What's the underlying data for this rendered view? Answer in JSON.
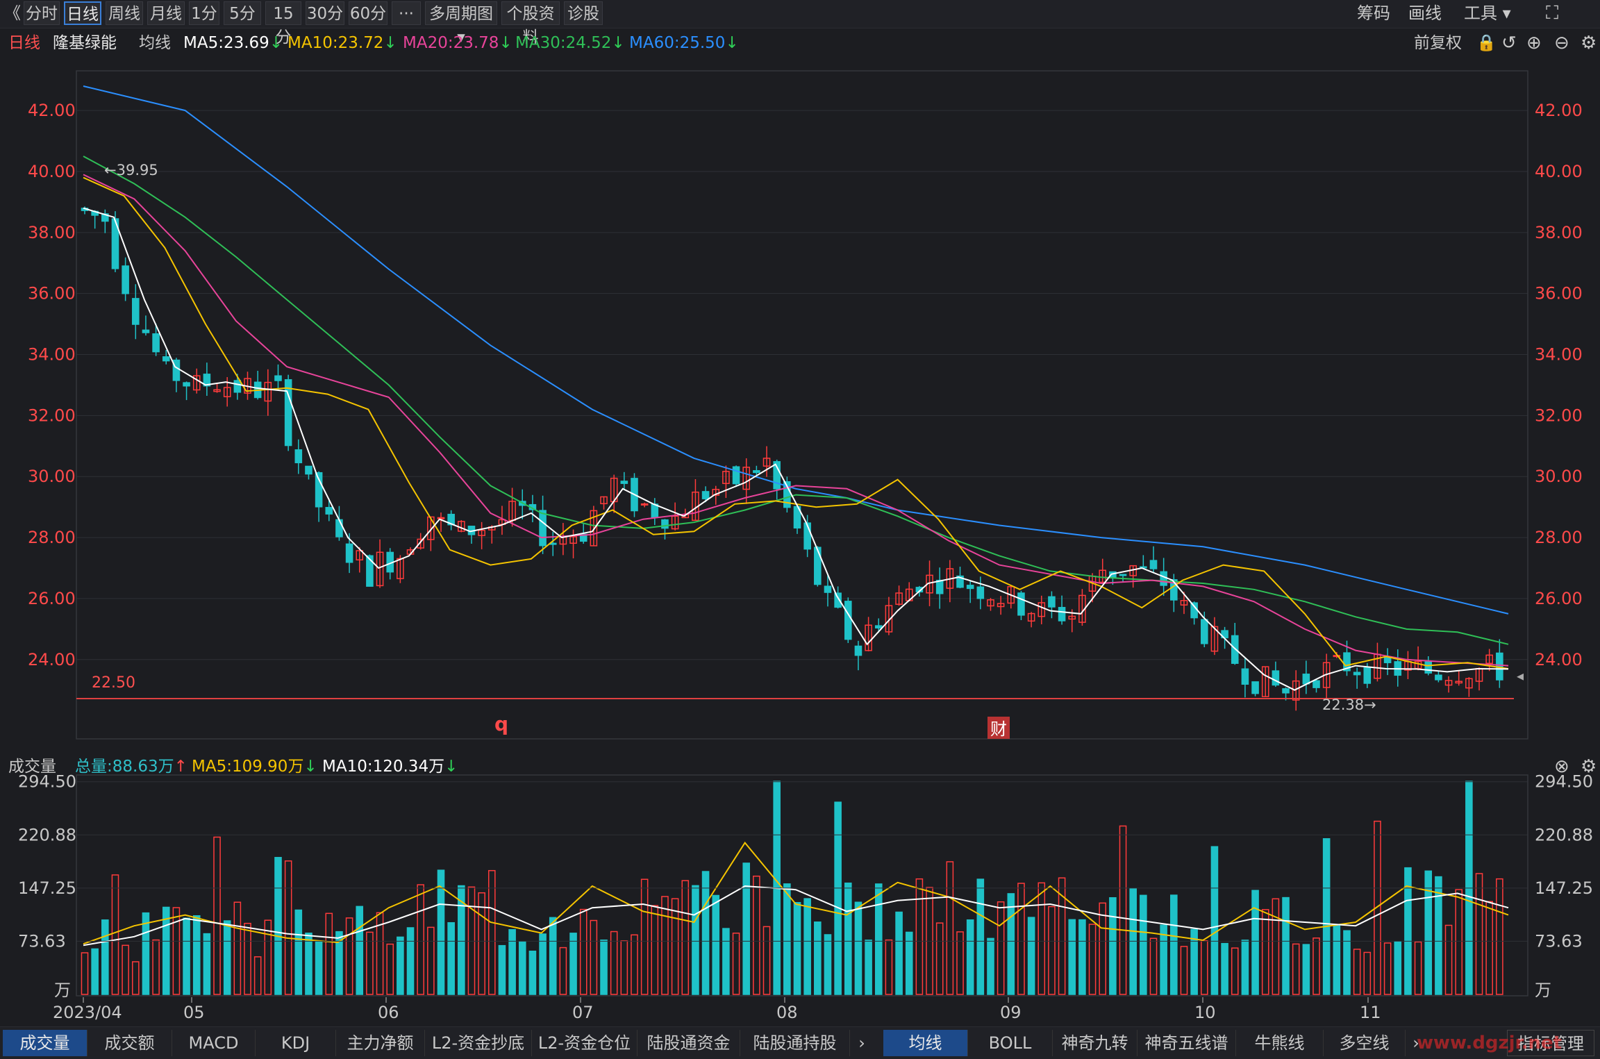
{
  "toolbar": {
    "back_icon": "《",
    "periods": [
      "分时",
      "日线",
      "周线",
      "月线",
      "1分",
      "5分",
      "15分",
      "30分",
      "60分"
    ],
    "active_period": "日线",
    "more_label": "···",
    "multi_period_label": "多周期图",
    "info_label": "个股资料",
    "diagnosis_label": "诊股",
    "right_items": [
      "筹码",
      "画线",
      "工具"
    ],
    "fullscreen_icon": "fullscreen-icon"
  },
  "legend": {
    "period": "日线",
    "stock_name": "隆基绿能",
    "ma_label": "均线",
    "ma5": "MA5:23.69",
    "ma10": "MA10:23.72",
    "ma20": "MA20:23.78",
    "ma30": "MA30:24.52",
    "ma60": "MA60:25.50",
    "adjust_label": "前复权",
    "colors": {
      "ma5": "#ffffff",
      "ma10": "#f5c400",
      "ma20": "#e8449a",
      "ma30": "#2fbf57",
      "ma60": "#2b8fff"
    }
  },
  "chart_data": {
    "type": "candlestick",
    "price_ticks": [
      "42.00",
      "40.00",
      "38.00",
      "36.00",
      "34.00",
      "32.00",
      "30.00",
      "28.00",
      "26.00",
      "24.00"
    ],
    "ylim": [
      21.4,
      43.3
    ],
    "max_label": "←39.95",
    "max_value": 39.95,
    "min_label": "22.38→",
    "min_value": 22.38,
    "support_label": "22.50",
    "support_value": 22.5,
    "markers": [
      {
        "label": "q",
        "color": "#ff4a4a"
      },
      {
        "label": "财",
        "color": "#ffffff"
      }
    ],
    "x_ticks": [
      "2023/04",
      "05",
      "06",
      "07",
      "08",
      "09",
      "10",
      "11"
    ],
    "ma_series": [
      {
        "name": "MA60",
        "color": "#2b8fff",
        "x": [
          0,
          10,
          20,
          30,
          40,
          50,
          60,
          70,
          75,
          80,
          90,
          100,
          110,
          120,
          130,
          140
        ],
        "y": [
          42.8,
          42.0,
          39.5,
          36.8,
          34.3,
          32.2,
          30.6,
          29.6,
          29.3,
          28.9,
          28.4,
          28.0,
          27.7,
          27.1,
          26.3,
          25.5
        ]
      },
      {
        "name": "MA30",
        "color": "#2fbf57",
        "x": [
          0,
          5,
          10,
          15,
          20,
          25,
          30,
          35,
          40,
          45,
          50,
          55,
          60,
          65,
          70,
          75,
          80,
          85,
          90,
          95,
          100,
          105,
          110,
          115,
          120,
          125,
          130,
          135,
          140
        ],
        "y": [
          40.5,
          39.6,
          38.5,
          37.2,
          35.8,
          34.4,
          33.0,
          31.3,
          29.7,
          28.8,
          28.4,
          28.3,
          28.5,
          28.9,
          29.4,
          29.3,
          28.7,
          28.0,
          27.4,
          26.9,
          26.7,
          26.6,
          26.5,
          26.3,
          25.9,
          25.4,
          25.0,
          24.9,
          24.5
        ]
      },
      {
        "name": "MA20",
        "color": "#e8449a",
        "x": [
          0,
          5,
          10,
          15,
          20,
          25,
          30,
          35,
          40,
          45,
          50,
          55,
          60,
          65,
          70,
          75,
          80,
          85,
          90,
          95,
          100,
          105,
          110,
          115,
          120,
          125,
          130,
          135,
          140
        ],
        "y": [
          39.9,
          39.1,
          37.4,
          35.1,
          33.6,
          33.1,
          32.6,
          30.8,
          28.8,
          28.0,
          28.1,
          28.6,
          28.8,
          29.3,
          29.7,
          29.6,
          28.9,
          27.9,
          27.1,
          26.8,
          26.5,
          26.6,
          26.4,
          25.9,
          25.0,
          24.3,
          24.0,
          23.9,
          23.8
        ]
      },
      {
        "name": "MA10",
        "color": "#f5c400",
        "x": [
          0,
          4,
          8,
          12,
          16,
          20,
          24,
          28,
          32,
          36,
          40,
          44,
          48,
          52,
          56,
          60,
          64,
          68,
          72,
          76,
          80,
          84,
          88,
          92,
          96,
          100,
          104,
          108,
          112,
          116,
          120,
          124,
          128,
          132,
          136,
          140
        ],
        "y": [
          39.8,
          39.2,
          37.5,
          35.0,
          32.8,
          32.9,
          32.7,
          32.2,
          29.8,
          27.6,
          27.1,
          27.3,
          28.4,
          28.9,
          28.1,
          28.2,
          29.1,
          29.2,
          29.0,
          29.1,
          29.9,
          28.6,
          26.9,
          26.3,
          26.9,
          26.4,
          25.7,
          26.6,
          27.1,
          26.9,
          25.5,
          23.8,
          24.1,
          23.8,
          23.9,
          23.7
        ]
      },
      {
        "name": "MA5",
        "color": "#ffffff",
        "x": [
          0,
          3,
          6,
          9,
          12,
          14,
          17,
          20,
          23,
          26,
          29,
          32,
          35,
          38,
          41,
          44,
          47,
          50,
          53,
          56,
          59,
          62,
          65,
          68,
          71,
          74,
          77,
          80,
          83,
          86,
          89,
          92,
          95,
          98,
          101,
          104,
          107,
          110,
          113,
          116,
          119,
          122,
          125,
          128,
          131,
          134,
          137,
          140
        ],
        "y": [
          38.8,
          38.5,
          35.8,
          33.6,
          33.0,
          33.1,
          32.9,
          32.8,
          30.0,
          28.0,
          27.0,
          27.4,
          28.6,
          28.2,
          28.4,
          28.8,
          28.0,
          28.2,
          29.6,
          29.1,
          28.7,
          29.4,
          29.8,
          30.4,
          28.5,
          26.1,
          24.5,
          25.6,
          26.5,
          26.7,
          26.4,
          26.0,
          25.6,
          25.5,
          26.8,
          27.0,
          26.6,
          25.4,
          24.4,
          23.5,
          23.0,
          23.5,
          23.8,
          23.7,
          23.69,
          23.6,
          23.7,
          23.69
        ]
      }
    ],
    "volume_ticks": [
      "294.50",
      "220.88",
      "147.25",
      "73.63",
      "万"
    ],
    "volume_ylim": [
      0,
      300
    ],
    "volume_ma_series": [
      {
        "name": "MA5",
        "color": "#f5c400",
        "x": [
          0,
          5,
          10,
          15,
          20,
          25,
          30,
          35,
          40,
          45,
          50,
          55,
          60,
          65,
          70,
          75,
          80,
          85,
          90,
          95,
          100,
          105,
          110,
          115,
          120,
          125,
          130,
          135,
          140
        ],
        "y": [
          70,
          95,
          110,
          92,
          78,
          72,
          120,
          150,
          100,
          85,
          150,
          115,
          100,
          210,
          125,
          110,
          155,
          135,
          95,
          150,
          92,
          85,
          75,
          120,
          90,
          100,
          150,
          135,
          110
        ]
      },
      {
        "name": "MA10",
        "color": "#ffffff",
        "x": [
          0,
          5,
          10,
          15,
          20,
          25,
          30,
          35,
          40,
          45,
          50,
          55,
          60,
          65,
          70,
          75,
          80,
          85,
          90,
          95,
          100,
          105,
          110,
          115,
          120,
          125,
          130,
          135,
          140
        ],
        "y": [
          68,
          80,
          105,
          95,
          84,
          78,
          100,
          125,
          120,
          90,
          120,
          125,
          110,
          150,
          145,
          115,
          130,
          135,
          120,
          125,
          110,
          100,
          90,
          105,
          100,
          95,
          130,
          140,
          120
        ]
      }
    ],
    "volume_summary": {
      "label": "成交量",
      "total": "总量:88.63万",
      "ma5": "MA5:109.90万",
      "ma10": "MA10:120.34万"
    }
  },
  "bottom_tabs": {
    "left": [
      "成交量",
      "成交额",
      "MACD",
      "KDJ",
      "主力净额",
      "L2-资金抄底",
      "L2-资金仓位",
      "陆股通资金",
      "陆股通持股"
    ],
    "right": [
      "均线",
      "BOLL",
      "神奇九转",
      "神奇五线谱",
      "牛熊线",
      "多空线"
    ],
    "manage_label": "指标管理",
    "watermark": "www.dgzjr.net"
  }
}
